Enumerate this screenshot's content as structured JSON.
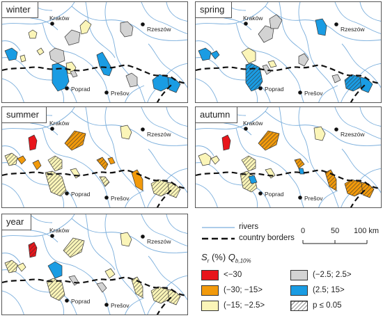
{
  "seasons": [
    "winter",
    "spring",
    "summer",
    "autumn",
    "year"
  ],
  "cities": [
    "Kraków",
    "Rzeszów",
    "Poprad",
    "Prešov"
  ],
  "legend": {
    "rivers_label": "rivers",
    "borders_label": "country borders",
    "index_main": "S",
    "index_sub": "r",
    "index_unit": " (%) ",
    "index_q": "Q",
    "index_q_sub": "b,10%",
    "classes": [
      {
        "label": "<−30",
        "color": "#e8151b"
      },
      {
        "label": "(−30; −15>",
        "color": "#f29a0b"
      },
      {
        "label": "(−15; −2.5>",
        "color": "#fbf5b8"
      },
      {
        "label": "(−2.5; 2.5>",
        "color": "#d3d3d3"
      },
      {
        "label": "(2.5; 15>",
        "color": "#1a9ce3"
      },
      {
        "label": "p ≤ 0.05",
        "color": "hatched"
      }
    ],
    "scale": {
      "ticks": [
        "0",
        "50",
        "100 km"
      ]
    }
  }
}
